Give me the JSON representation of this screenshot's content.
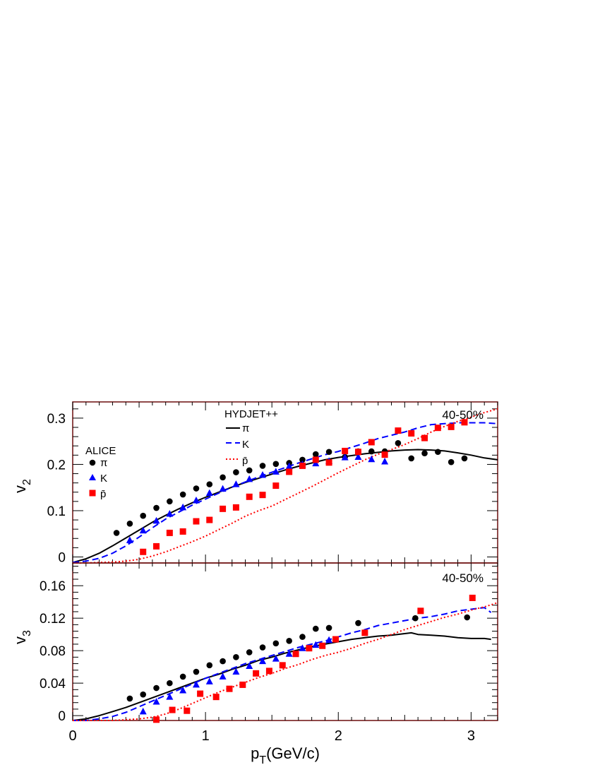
{
  "chart_data": [
    {
      "type": "scatter",
      "panel": "top",
      "ylabel": "v",
      "ylabel_sub": "2",
      "xlim": [
        0,
        3.2
      ],
      "ylim": [
        -0.013,
        0.335
      ],
      "yticks": [
        0,
        0.1,
        0.2,
        0.3
      ],
      "ytick_labels": [
        "0",
        "0.1",
        "0.2",
        "0.3"
      ],
      "centrality": "40-50%",
      "legend_data_title": "ALICE",
      "legend_model_title": "HYDJET++",
      "series": [
        {
          "name": "π",
          "kind": "data",
          "marker": "circle",
          "color": "#000000",
          "x": [
            0.33,
            0.43,
            0.53,
            0.63,
            0.73,
            0.83,
            0.93,
            1.03,
            1.13,
            1.23,
            1.33,
            1.43,
            1.53,
            1.63,
            1.73,
            1.83,
            1.93,
            2.05,
            2.15,
            2.25,
            2.35,
            2.45,
            2.55,
            2.65,
            2.75,
            2.85,
            2.95
          ],
          "y": [
            0.052,
            0.072,
            0.089,
            0.106,
            0.12,
            0.135,
            0.148,
            0.157,
            0.172,
            0.183,
            0.187,
            0.197,
            0.201,
            0.203,
            0.21,
            0.222,
            0.227,
            0.216,
            0.228,
            0.228,
            0.228,
            0.246,
            0.213,
            0.224,
            0.227,
            0.205,
            0.213
          ]
        },
        {
          "name": "K",
          "kind": "data",
          "marker": "triangle",
          "color": "#0000ff",
          "x": [
            0.43,
            0.53,
            0.63,
            0.73,
            0.83,
            0.93,
            1.03,
            1.13,
            1.23,
            1.33,
            1.43,
            1.53,
            1.63,
            1.73,
            1.83,
            1.93,
            2.05,
            2.15,
            2.25,
            2.35
          ],
          "y": [
            0.036,
            0.057,
            0.078,
            0.093,
            0.107,
            0.122,
            0.138,
            0.147,
            0.157,
            0.168,
            0.177,
            0.184,
            0.196,
            0.2,
            0.202,
            0.207,
            0.215,
            0.216,
            0.211,
            0.206
          ]
        },
        {
          "name": "p̄",
          "kind": "data",
          "marker": "square",
          "color": "#ff0000",
          "x": [
            0.53,
            0.63,
            0.73,
            0.83,
            0.93,
            1.03,
            1.13,
            1.23,
            1.33,
            1.43,
            1.53,
            1.63,
            1.73,
            1.83,
            1.93,
            2.05,
            2.15,
            2.25,
            2.35,
            2.45,
            2.55,
            2.65,
            2.75,
            2.85,
            2.95
          ],
          "y": [
            0.011,
            0.023,
            0.052,
            0.055,
            0.077,
            0.08,
            0.104,
            0.107,
            0.13,
            0.134,
            0.154,
            0.184,
            0.197,
            0.21,
            0.204,
            0.229,
            0.227,
            0.248,
            0.221,
            0.273,
            0.267,
            0.257,
            0.279,
            0.281,
            0.291
          ]
        },
        {
          "name": "π",
          "kind": "model",
          "line": "solid",
          "color": "#000000",
          "x": [
            0,
            0.1,
            0.2,
            0.3,
            0.4,
            0.5,
            0.6,
            0.7,
            0.8,
            0.9,
            1.0,
            1.1,
            1.2,
            1.3,
            1.4,
            1.5,
            1.6,
            1.7,
            1.8,
            1.9,
            2.0,
            2.1,
            2.2,
            2.3,
            2.4,
            2.5,
            2.6,
            2.7,
            2.8,
            2.9,
            3.0,
            3.1,
            3.2
          ],
          "y": [
            -0.012,
            -0.004,
            0.008,
            0.024,
            0.041,
            0.058,
            0.075,
            0.09,
            0.104,
            0.117,
            0.129,
            0.14,
            0.151,
            0.161,
            0.17,
            0.179,
            0.188,
            0.196,
            0.203,
            0.21,
            0.215,
            0.219,
            0.223,
            0.226,
            0.229,
            0.231,
            0.232,
            0.231,
            0.229,
            0.225,
            0.22,
            0.214,
            0.21
          ]
        },
        {
          "name": "K",
          "kind": "model",
          "line": "dashed",
          "color": "#0000ff",
          "x": [
            0,
            0.1,
            0.2,
            0.3,
            0.4,
            0.5,
            0.6,
            0.7,
            0.8,
            0.9,
            1.0,
            1.1,
            1.2,
            1.3,
            1.4,
            1.5,
            1.6,
            1.7,
            1.8,
            1.9,
            2.0,
            2.1,
            2.2,
            2.3,
            2.4,
            2.5,
            2.6,
            2.7,
            2.8,
            2.9,
            3.0,
            3.1,
            3.2
          ],
          "y": [
            -0.012,
            -0.009,
            -0.003,
            0.008,
            0.024,
            0.043,
            0.063,
            0.082,
            0.097,
            0.112,
            0.125,
            0.138,
            0.151,
            0.162,
            0.173,
            0.183,
            0.193,
            0.203,
            0.212,
            0.221,
            0.228,
            0.237,
            0.246,
            0.256,
            0.263,
            0.27,
            0.279,
            0.286,
            0.288,
            0.29,
            0.29,
            0.29,
            0.288
          ]
        },
        {
          "name": "p̄",
          "kind": "model",
          "line": "dotted",
          "color": "#ff0000",
          "x": [
            0,
            0.1,
            0.2,
            0.3,
            0.4,
            0.5,
            0.6,
            0.7,
            0.8,
            0.9,
            1.0,
            1.1,
            1.2,
            1.3,
            1.4,
            1.5,
            1.6,
            1.7,
            1.8,
            1.9,
            2.0,
            2.1,
            2.2,
            2.3,
            2.4,
            2.5,
            2.6,
            2.7,
            2.8,
            2.9,
            3.0,
            3.1,
            3.2
          ],
          "y": [
            -0.013,
            -0.013,
            -0.012,
            -0.011,
            -0.009,
            -0.005,
            0.002,
            0.011,
            0.022,
            0.033,
            0.045,
            0.059,
            0.073,
            0.088,
            0.1,
            0.11,
            0.124,
            0.138,
            0.152,
            0.167,
            0.182,
            0.196,
            0.21,
            0.222,
            0.232,
            0.243,
            0.256,
            0.27,
            0.282,
            0.293,
            0.302,
            0.312,
            0.32
          ]
        }
      ]
    },
    {
      "type": "scatter",
      "panel": "bottom",
      "xlabel": "p",
      "xlabel_sub": "T",
      "xlabel_suffix": "(GeV/c)",
      "ylabel": "v",
      "ylabel_sub": "3",
      "xlim": [
        0,
        3.2
      ],
      "ylim": [
        -0.006,
        0.188
      ],
      "xticks": [
        0,
        1,
        2,
        3
      ],
      "xtick_labels": [
        "0",
        "1",
        "2",
        "3"
      ],
      "yticks": [
        0,
        0.04,
        0.08,
        0.12,
        0.16
      ],
      "ytick_labels": [
        "0",
        "0.04",
        "0.08",
        "0.12",
        "0.16"
      ],
      "centrality": "40-50%",
      "series": [
        {
          "name": "π",
          "kind": "data",
          "marker": "circle",
          "color": "#000000",
          "x": [
            0.43,
            0.53,
            0.63,
            0.73,
            0.83,
            0.93,
            1.03,
            1.13,
            1.23,
            1.33,
            1.43,
            1.53,
            1.63,
            1.73,
            1.83,
            1.93,
            2.15,
            2.58,
            2.97
          ],
          "y": [
            0.021,
            0.026,
            0.034,
            0.04,
            0.048,
            0.054,
            0.062,
            0.067,
            0.072,
            0.078,
            0.084,
            0.089,
            0.092,
            0.097,
            0.107,
            0.108,
            0.114,
            0.12,
            0.121
          ]
        },
        {
          "name": "K",
          "kind": "data",
          "marker": "triangle",
          "color": "#0000ff",
          "x": [
            0.53,
            0.63,
            0.73,
            0.83,
            0.93,
            1.03,
            1.13,
            1.23,
            1.33,
            1.43,
            1.53,
            1.63,
            1.73,
            1.83,
            1.93
          ],
          "y": [
            0.005,
            0.017,
            0.023,
            0.031,
            0.038,
            0.042,
            0.048,
            0.054,
            0.061,
            0.067,
            0.07,
            0.076,
            0.083,
            0.087,
            0.093
          ]
        },
        {
          "name": "p̄",
          "kind": "data",
          "marker": "square",
          "color": "#ff0000",
          "x": [
            0.63,
            0.75,
            0.86,
            0.96,
            1.08,
            1.18,
            1.28,
            1.38,
            1.48,
            1.58,
            1.68,
            1.78,
            1.88,
            1.98,
            2.2,
            2.62,
            3.01
          ],
          "y": [
            -0.005,
            0.007,
            0.006,
            0.027,
            0.023,
            0.033,
            0.038,
            0.052,
            0.055,
            0.062,
            0.076,
            0.083,
            0.086,
            0.094,
            0.102,
            0.129,
            0.145
          ]
        },
        {
          "name": "π",
          "kind": "model",
          "line": "solid",
          "color": "#000000",
          "x": [
            0,
            0.1,
            0.2,
            0.3,
            0.4,
            0.5,
            0.6,
            0.7,
            0.8,
            0.9,
            1.0,
            1.1,
            1.2,
            1.3,
            1.4,
            1.5,
            1.6,
            1.7,
            1.8,
            1.9,
            2.0,
            2.1,
            2.2,
            2.3,
            2.4,
            2.5,
            2.55,
            2.6,
            2.7,
            2.8,
            2.9,
            3.0,
            3.1,
            3.15
          ],
          "y": [
            -0.006,
            -0.004,
            0.0,
            0.005,
            0.01,
            0.016,
            0.022,
            0.028,
            0.034,
            0.04,
            0.046,
            0.051,
            0.057,
            0.062,
            0.068,
            0.072,
            0.077,
            0.081,
            0.085,
            0.088,
            0.091,
            0.094,
            0.096,
            0.098,
            0.099,
            0.101,
            0.102,
            0.1,
            0.099,
            0.098,
            0.096,
            0.095,
            0.095,
            0.094
          ]
        },
        {
          "name": "K",
          "kind": "model",
          "line": "dashed",
          "color": "#0000ff",
          "x": [
            0,
            0.1,
            0.2,
            0.3,
            0.4,
            0.5,
            0.6,
            0.7,
            0.8,
            0.9,
            1.0,
            1.1,
            1.2,
            1.3,
            1.4,
            1.5,
            1.6,
            1.7,
            1.8,
            1.9,
            2.0,
            2.1,
            2.2,
            2.3,
            2.4,
            2.5,
            2.6,
            2.7,
            2.8,
            2.9,
            3.0,
            3.1,
            3.15
          ],
          "y": [
            -0.006,
            -0.006,
            -0.004,
            -0.001,
            0.004,
            0.011,
            0.018,
            0.025,
            0.032,
            0.039,
            0.046,
            0.052,
            0.058,
            0.064,
            0.069,
            0.074,
            0.079,
            0.084,
            0.088,
            0.092,
            0.097,
            0.102,
            0.106,
            0.111,
            0.114,
            0.117,
            0.12,
            0.122,
            0.125,
            0.129,
            0.131,
            0.133,
            0.127
          ]
        },
        {
          "name": "p̄",
          "kind": "model",
          "line": "dotted",
          "color": "#ff0000",
          "x": [
            0,
            0.1,
            0.2,
            0.3,
            0.4,
            0.5,
            0.6,
            0.7,
            0.8,
            0.9,
            1.0,
            1.1,
            1.2,
            1.3,
            1.4,
            1.5,
            1.6,
            1.7,
            1.8,
            1.9,
            2.0,
            2.1,
            2.2,
            2.3,
            2.4,
            2.5,
            2.6,
            2.7,
            2.8,
            2.9,
            3.0,
            3.1,
            3.2
          ],
          "y": [
            -0.006,
            -0.006,
            -0.006,
            -0.006,
            -0.005,
            -0.004,
            -0.002,
            0.002,
            0.008,
            0.015,
            0.022,
            0.029,
            0.035,
            0.041,
            0.047,
            0.052,
            0.058,
            0.063,
            0.069,
            0.074,
            0.078,
            0.083,
            0.089,
            0.094,
            0.1,
            0.106,
            0.111,
            0.116,
            0.121,
            0.125,
            0.13,
            0.134,
            0.139
          ]
        }
      ]
    }
  ]
}
